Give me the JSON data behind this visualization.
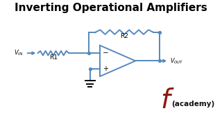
{
  "title": "Inverting Operational Amplifiers",
  "title_fontsize": 11,
  "title_fontweight": "bold",
  "bg_color": "#ffffff",
  "circuit_color": "#5588bb",
  "circuit_lw": 1.4,
  "label_color": "#000000",
  "academy_f_color": "#8b1a10",
  "academy_text_color": "#111111",
  "vin_label": "$V_{IN}$",
  "vout_label": "$V_{OUT}$",
  "r1_label": "R1",
  "r2_label": "R2",
  "minus_label": "−",
  "plus_label": "+"
}
